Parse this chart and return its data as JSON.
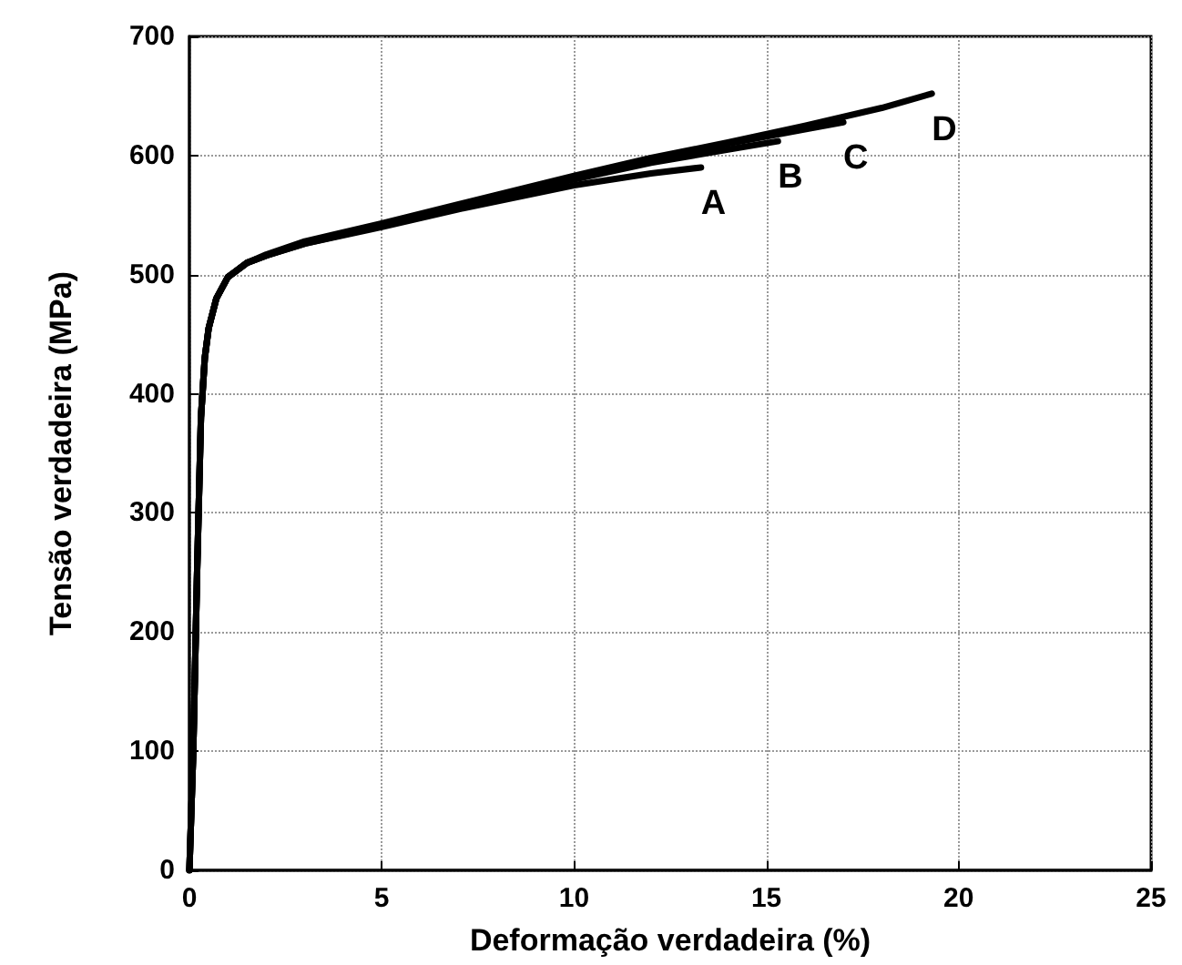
{
  "chart_data": {
    "type": "line",
    "xlabel": "Deformação verdadeira (%)",
    "ylabel": "Tensão verdadeira (MPa)",
    "xlim": [
      0,
      25
    ],
    "xticks": [
      0,
      5,
      10,
      15,
      20,
      25
    ],
    "ylim": [
      0,
      700
    ],
    "yticks": [
      0,
      100,
      200,
      300,
      400,
      500,
      600,
      700
    ],
    "grid": true,
    "legend": false,
    "marker": "none",
    "line_style": "solid",
    "series": [
      {
        "name": "A",
        "color": "#000000",
        "x": [
          0,
          0.1,
          0.2,
          0.3,
          0.4,
          0.5,
          0.7,
          1,
          1.5,
          2,
          3,
          5,
          7,
          10,
          12,
          13.3
        ],
        "values": [
          0,
          100,
          250,
          380,
          430,
          455,
          480,
          498,
          510,
          516,
          526,
          540,
          555,
          575,
          585,
          590
        ]
      },
      {
        "name": "B",
        "color": "#000000",
        "x": [
          0,
          0.1,
          0.2,
          0.3,
          0.4,
          0.5,
          0.7,
          1,
          1.5,
          2,
          3,
          5,
          7,
          10,
          12,
          14,
          15.3
        ],
        "values": [
          0,
          100,
          250,
          380,
          430,
          455,
          480,
          498,
          510,
          516,
          526,
          541,
          557,
          580,
          594,
          605,
          612
        ]
      },
      {
        "name": "C",
        "color": "#000000",
        "x": [
          0,
          0.1,
          0.2,
          0.3,
          0.4,
          0.5,
          0.7,
          1,
          1.5,
          2,
          3,
          5,
          7,
          10,
          12,
          14,
          16,
          17
        ],
        "values": [
          0,
          100,
          250,
          380,
          430,
          455,
          480,
          498,
          510,
          516,
          527,
          542,
          558,
          582,
          597,
          610,
          622,
          628
        ]
      },
      {
        "name": "D",
        "color": "#000000",
        "x": [
          0,
          0.1,
          0.2,
          0.3,
          0.4,
          0.5,
          0.7,
          1,
          1.5,
          2,
          3,
          5,
          7,
          10,
          12,
          14,
          16,
          18,
          19.3
        ],
        "values": [
          0,
          100,
          250,
          380,
          430,
          455,
          480,
          498,
          510,
          517,
          528,
          543,
          559,
          583,
          598,
          611,
          625,
          640,
          652
        ]
      }
    ]
  }
}
